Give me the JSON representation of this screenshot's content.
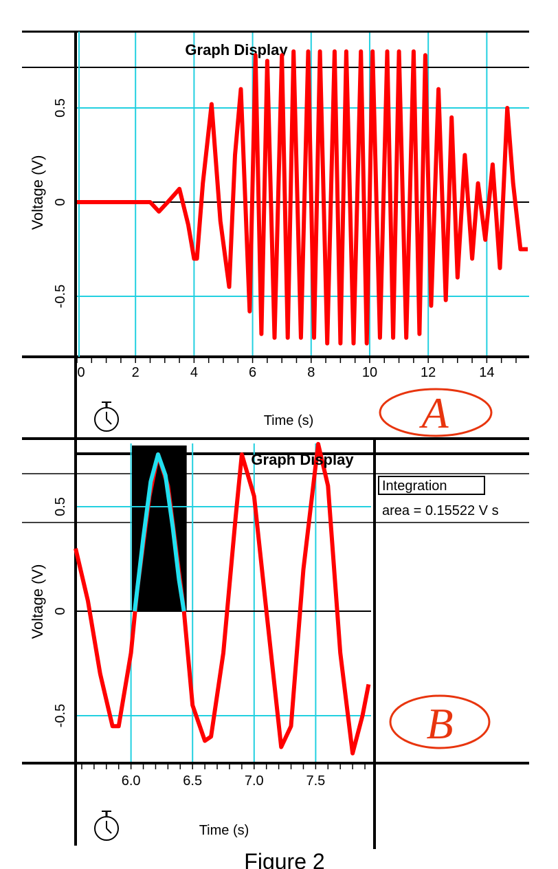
{
  "chart_data": [
    {
      "type": "line",
      "panel_badge": "A",
      "title": "Graph Display",
      "xlabel": "Time (s)",
      "ylabel": "Voltage (V)",
      "xlim": [
        0,
        15.4
      ],
      "ylim": [
        -0.8,
        0.8
      ],
      "x_ticks": [
        "0",
        "2",
        "4",
        "6",
        "8",
        "10",
        "12",
        "14"
      ],
      "y_ticks": [
        "0.5",
        "0",
        "-0.5"
      ],
      "grid": true,
      "series": [
        {
          "color": "#ff0000",
          "description_points": {
            "x": [
              0,
              0.5,
              1,
              1.5,
              2,
              2.5,
              2.8,
              3.1,
              3.5,
              3.8,
              4.0,
              4.1,
              4.3,
              4.6,
              4.9,
              5.2,
              5.4,
              5.6,
              5.9,
              6.1,
              6.3,
              6.5,
              6.75,
              7.0,
              7.2,
              7.4,
              7.65,
              7.9,
              8.1,
              8.3,
              8.55,
              8.8,
              9.0,
              9.2,
              9.45,
              9.7,
              9.9,
              10.1,
              10.35,
              10.6,
              10.8,
              11.0,
              11.25,
              11.5,
              11.7,
              11.9,
              12.1,
              12.35,
              12.6,
              12.8,
              13.0,
              13.25,
              13.5,
              13.7,
              13.95,
              14.2,
              14.45,
              14.7,
              14.9,
              15.15,
              15.4
            ],
            "y": [
              0.0,
              0.0,
              0.0,
              0.0,
              0.0,
              0.0,
              -0.05,
              0.0,
              0.07,
              -0.12,
              -0.3,
              -0.3,
              0.1,
              0.52,
              -0.1,
              -0.45,
              0.25,
              0.6,
              -0.58,
              0.78,
              -0.7,
              0.75,
              -0.72,
              0.78,
              -0.72,
              0.8,
              -0.72,
              0.8,
              -0.72,
              0.8,
              -0.75,
              0.8,
              -0.75,
              0.8,
              -0.75,
              0.8,
              -0.75,
              0.8,
              -0.72,
              0.8,
              -0.72,
              0.8,
              -0.72,
              0.8,
              -0.7,
              0.78,
              -0.55,
              0.6,
              -0.52,
              0.45,
              -0.4,
              0.25,
              -0.3,
              0.1,
              -0.2,
              0.2,
              -0.35,
              0.5,
              0.1,
              -0.25,
              -0.25
            ]
          }
        }
      ]
    },
    {
      "type": "line",
      "panel_badge": "B",
      "title": "Graph Display",
      "xlabel": "Time (s)",
      "ylabel": "Voltage (V)",
      "xlim": [
        5.55,
        7.95
      ],
      "ylim": [
        -0.8,
        0.8
      ],
      "x_ticks": [
        "6.0",
        "6.5",
        "7.0",
        "7.5"
      ],
      "y_ticks": [
        "0.5",
        "0",
        "-0.5"
      ],
      "grid": true,
      "integration": {
        "label": "Integration",
        "result": "area = 0.15522 V s",
        "x_range": [
          6.03,
          6.43
        ]
      },
      "series": [
        {
          "color": "#ff0000",
          "x": [
            5.55,
            5.65,
            5.75,
            5.85,
            5.9,
            6.0,
            6.05,
            6.15,
            6.22,
            6.3,
            6.43,
            6.5,
            6.6,
            6.65,
            6.75,
            6.85,
            6.9,
            7.0,
            7.1,
            7.22,
            7.3,
            7.4,
            7.52,
            7.6,
            7.7,
            7.8,
            7.88,
            7.93
          ],
          "y": [
            0.3,
            0.05,
            -0.3,
            -0.55,
            -0.55,
            -0.2,
            0.1,
            0.55,
            0.75,
            0.6,
            0.0,
            -0.45,
            -0.62,
            -0.6,
            -0.2,
            0.45,
            0.75,
            0.55,
            0.0,
            -0.65,
            -0.55,
            0.2,
            0.8,
            0.6,
            -0.2,
            -0.68,
            -0.5,
            -0.35
          ]
        },
        {
          "color": "#22e0f0",
          "x": [
            6.03,
            6.1,
            6.16,
            6.22,
            6.28,
            6.34,
            6.39,
            6.43
          ],
          "y": [
            0.0,
            0.35,
            0.62,
            0.75,
            0.65,
            0.4,
            0.15,
            0.0
          ]
        }
      ]
    }
  ],
  "caption": "Figure 2"
}
